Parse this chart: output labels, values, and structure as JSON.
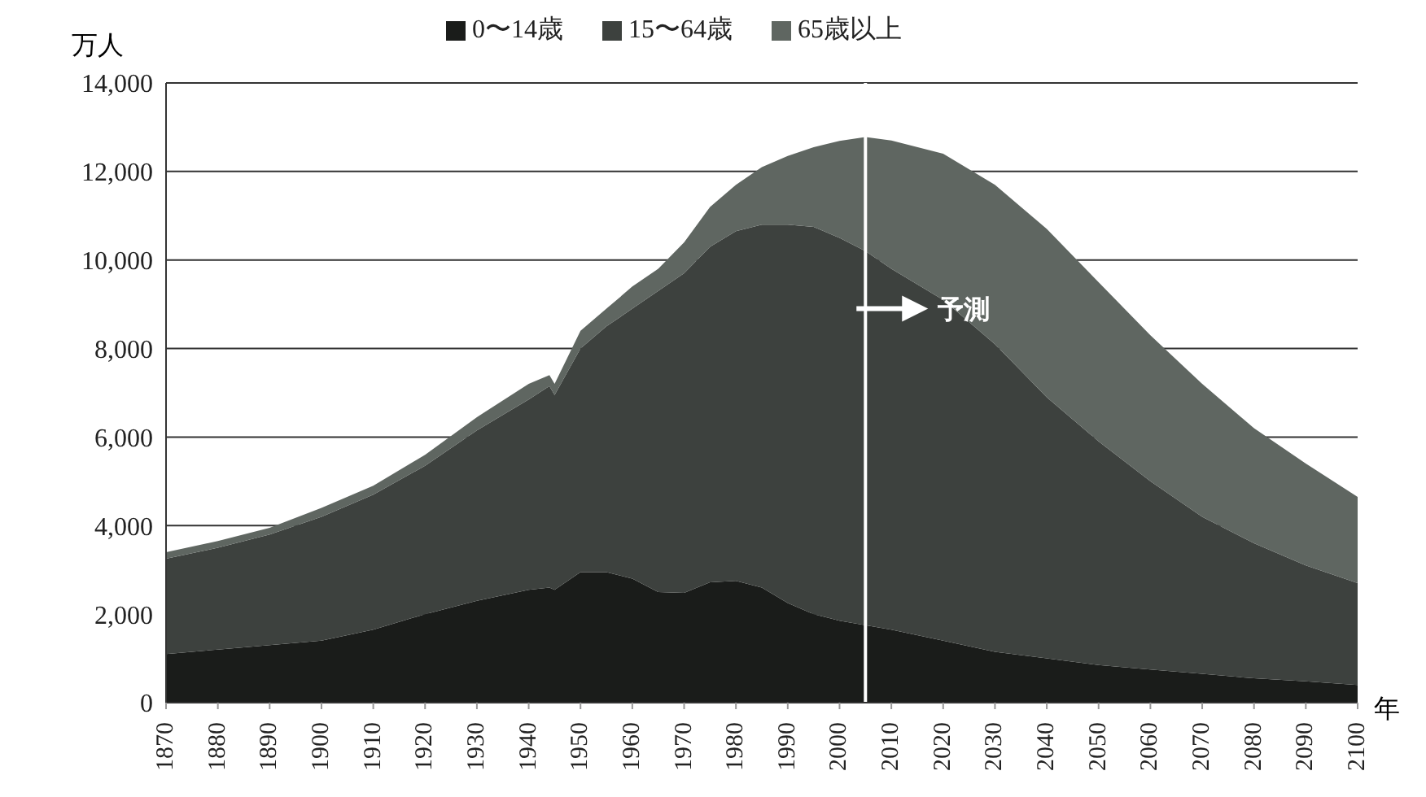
{
  "chart_data": {
    "type": "area",
    "stacked": true,
    "xlabel": "年",
    "ylabel": "万人",
    "x": [
      1870,
      1880,
      1890,
      1900,
      1910,
      1920,
      1930,
      1940,
      1944,
      1945,
      1950,
      1955,
      1960,
      1965,
      1970,
      1975,
      1980,
      1985,
      1990,
      1995,
      2000,
      2005,
      2010,
      2020,
      2030,
      2040,
      2050,
      2060,
      2070,
      2080,
      2090,
      2100
    ],
    "series": [
      {
        "name": "0〜14歳",
        "color": "#1a1c1a",
        "values": [
          1100,
          1200,
          1300,
          1400,
          1650,
          2000,
          2300,
          2550,
          2600,
          2550,
          2950,
          2950,
          2800,
          2500,
          2480,
          2720,
          2750,
          2600,
          2250,
          2000,
          1850,
          1750,
          1650,
          1400,
          1150,
          1000,
          850,
          750,
          650,
          550,
          480,
          400
        ]
      },
      {
        "name": "15〜64歳",
        "color": "#3d413e",
        "values": [
          2150,
          2300,
          2500,
          2800,
          3050,
          3350,
          3850,
          4300,
          4550,
          4400,
          5050,
          5550,
          6100,
          6800,
          7220,
          7580,
          7900,
          8200,
          8550,
          8750,
          8650,
          8450,
          8150,
          7700,
          6950,
          5900,
          5050,
          4250,
          3550,
          3050,
          2620,
          2300
        ]
      },
      {
        "name": "65歳以上",
        "color": "#5f6661",
        "values": [
          150,
          150,
          150,
          200,
          200,
          250,
          300,
          350,
          250,
          250,
          400,
          400,
          500,
          500,
          700,
          900,
          1050,
          1300,
          1550,
          1800,
          2190,
          2580,
          2900,
          3300,
          3600,
          3800,
          3600,
          3300,
          3000,
          2600,
          2300,
          1950
        ]
      }
    ],
    "xlim": [
      1870,
      2100
    ],
    "xticks": [
      1870,
      1880,
      1890,
      1900,
      1910,
      1920,
      1930,
      1940,
      1950,
      1960,
      1970,
      1980,
      1990,
      2000,
      2010,
      2020,
      2030,
      2040,
      2050,
      2060,
      2070,
      2080,
      2090,
      2100
    ],
    "ylim": [
      0,
      14000
    ],
    "yticks": [
      0,
      {
        "value": 2000,
        "label": "2,000"
      },
      {
        "value": 4000,
        "label": "4,000"
      },
      {
        "value": 6000,
        "label": "6,000"
      },
      {
        "value": 8000,
        "label": "8,000"
      },
      {
        "value": 10000,
        "label": "10,000"
      },
      {
        "value": 12000,
        "label": "12,000"
      },
      {
        "value": 14000,
        "label": "14,000"
      }
    ],
    "grid": "y",
    "legend": "top",
    "ref_lines": [
      {
        "axis": "x",
        "value": 2005,
        "color": "#ffffff"
      }
    ],
    "annotations": [
      {
        "text": "予測",
        "x": 2024,
        "y": 8900
      }
    ]
  }
}
